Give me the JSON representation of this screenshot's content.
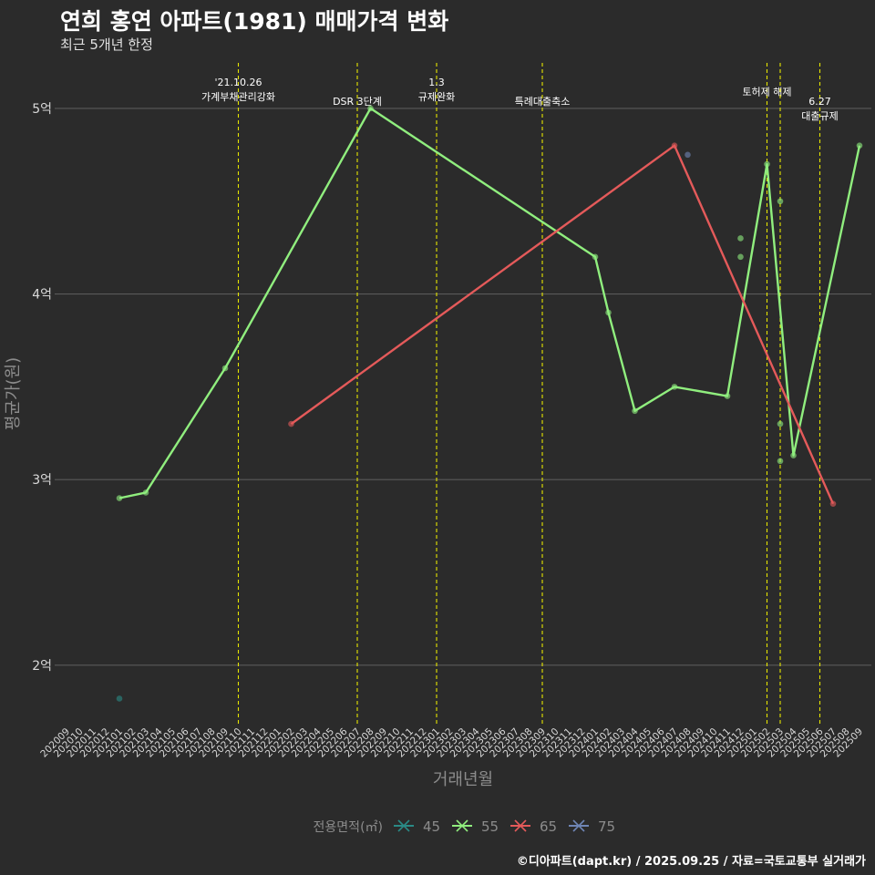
{
  "title": "연희 홍연 아파트(1981) 매매가격 변화",
  "subtitle": "최근 5개년 한정",
  "caption": "©디아파트(dapt.kr) / 2025.09.25 / 자료=국토교통부 실거래가",
  "colors": {
    "background": "#2b2b2b",
    "grid": "#5a5a5a",
    "event_line": "#e6e600",
    "axis_text": "#d9d9d9",
    "axis_title": "#8c8c8c"
  },
  "chart_data": {
    "type": "line",
    "xlabel": "거래년월",
    "ylabel": "평균가(원)",
    "ylim": [
      16700,
      52600
    ],
    "yticks": [
      {
        "value": 20000,
        "label": "2억"
      },
      {
        "value": 30000,
        "label": "3억"
      },
      {
        "value": 40000,
        "label": "4억"
      },
      {
        "value": 50000,
        "label": "5억"
      }
    ],
    "categories": [
      "202009",
      "202010",
      "202011",
      "202012",
      "202101",
      "202102",
      "202103",
      "202104",
      "202105",
      "202106",
      "202107",
      "202108",
      "202109",
      "202110",
      "202111",
      "202112",
      "202201",
      "202202",
      "202203",
      "202204",
      "202205",
      "202206",
      "202207",
      "202208",
      "202209",
      "202210",
      "202211",
      "202212",
      "202301",
      "202302",
      "202303",
      "202304",
      "202305",
      "202306",
      "202307",
      "202308",
      "202309",
      "202310",
      "202311",
      "202312",
      "202401",
      "202402",
      "202403",
      "202404",
      "202405",
      "202406",
      "202407",
      "202408",
      "202409",
      "202410",
      "202411",
      "202412",
      "202501",
      "202502",
      "202503",
      "202504",
      "202505",
      "202506",
      "202507",
      "202508",
      "202509"
    ],
    "legend": {
      "title": "전용면적(㎡)",
      "position": "bottom"
    },
    "series": [
      {
        "name": "45",
        "color": "#2a8a86",
        "line": [],
        "points": [
          [
            "202101",
            18200
          ]
        ]
      },
      {
        "name": "55",
        "color": "#90ee7e",
        "line": [
          [
            "202101",
            29000
          ],
          [
            "202103",
            29300
          ],
          [
            "202109",
            36000
          ],
          [
            "202208",
            50000
          ],
          [
            "202401",
            42000
          ],
          [
            "202402",
            39000
          ],
          [
            "202404",
            33700
          ],
          [
            "202407",
            35000
          ],
          [
            "202411",
            34500
          ],
          [
            "202502",
            47000
          ],
          [
            "202504",
            31300
          ],
          [
            "202509",
            48000
          ]
        ],
        "points": [
          [
            "202101",
            29000
          ],
          [
            "202103",
            29300
          ],
          [
            "202109",
            36000
          ],
          [
            "202208",
            50000
          ],
          [
            "202401",
            42000
          ],
          [
            "202402",
            39000
          ],
          [
            "202404",
            33700
          ],
          [
            "202407",
            35000
          ],
          [
            "202411",
            34500
          ],
          [
            "202412",
            43000
          ],
          [
            "202412",
            42000
          ],
          [
            "202502",
            47000
          ],
          [
            "202503",
            45000
          ],
          [
            "202503",
            33000
          ],
          [
            "202503",
            31000
          ],
          [
            "202504",
            31300
          ],
          [
            "202509",
            48000
          ]
        ]
      },
      {
        "name": "65",
        "color": "#e45a5a",
        "line": [
          [
            "202202",
            33000
          ],
          [
            "202407",
            48000
          ],
          [
            "202507",
            28700
          ]
        ],
        "points": [
          [
            "202202",
            33000
          ],
          [
            "202407",
            48000
          ],
          [
            "202507",
            28700
          ]
        ]
      },
      {
        "name": "75",
        "color": "#6f86b6",
        "line": [],
        "points": [
          [
            "202408",
            47500
          ]
        ]
      }
    ],
    "events": [
      {
        "month": "202110",
        "lines": [
          "'21.10.26",
          "가계부채관리강화"
        ],
        "level": 0
      },
      {
        "month": "202207",
        "lines": [
          "DSR 3단계"
        ],
        "level": 1
      },
      {
        "month": "202301",
        "lines": [
          "1.3",
          "규제완화"
        ],
        "level": 0
      },
      {
        "month": "202309",
        "lines": [
          "특례대출축소"
        ],
        "level": 1
      },
      {
        "month": "202502",
        "lines": [
          "토허제 해제"
        ],
        "level": 0.5
      },
      {
        "month": "202503",
        "lines": [],
        "level": 0
      },
      {
        "month": "202506",
        "lines": [
          "6.27",
          "대출규제"
        ],
        "level": 1
      }
    ]
  }
}
